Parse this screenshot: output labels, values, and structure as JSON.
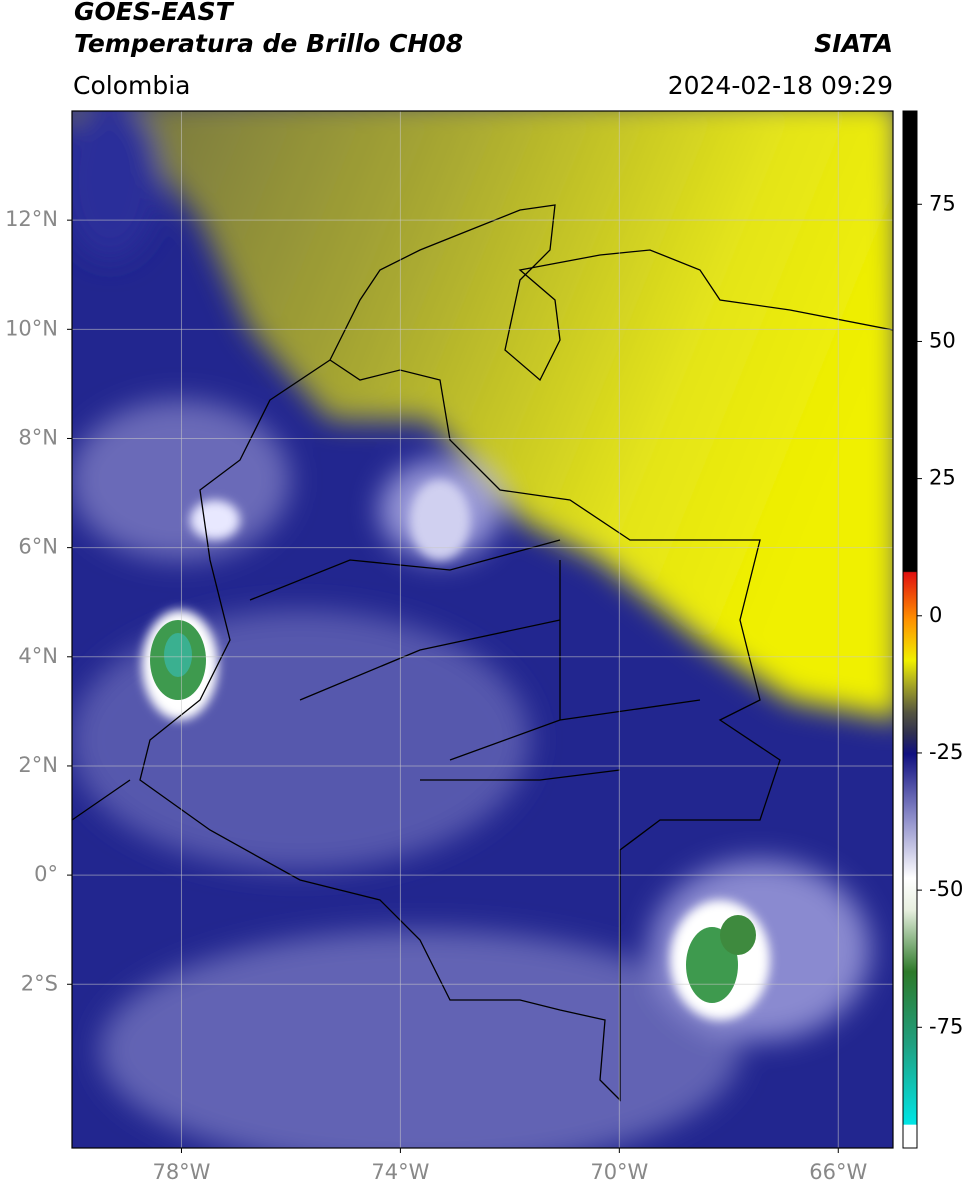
{
  "header": {
    "title": "GOES-EAST",
    "subtitle": "Temperatura de Brillo CH08",
    "region": "Colombia",
    "source": "SIATA",
    "datetime": "2024-02-18 09:29"
  },
  "chart_data": {
    "type": "map",
    "xlim": [
      -80,
      -65
    ],
    "xticks": [
      {
        "value": -78,
        "label": "78°W"
      },
      {
        "value": -74,
        "label": "74°W"
      },
      {
        "value": -70,
        "label": "70°W"
      },
      {
        "value": -66,
        "label": "66°W"
      }
    ],
    "ylim": [
      -5,
      14
    ],
    "yticks": [
      {
        "value": 12,
        "label": "12°N"
      },
      {
        "value": 10,
        "label": "10°N"
      },
      {
        "value": 8,
        "label": "8°N"
      },
      {
        "value": 6,
        "label": "6°N"
      },
      {
        "value": 4,
        "label": "4°N"
      },
      {
        "value": 2,
        "label": "2°N"
      },
      {
        "value": 0,
        "label": "0°"
      },
      {
        "value": -2,
        "label": "2°S"
      }
    ],
    "grid": true,
    "colorbar": {
      "lim": [
        -97,
        92
      ],
      "ticks": [
        75,
        50,
        25,
        0,
        -25,
        -50,
        -75
      ]
    }
  }
}
